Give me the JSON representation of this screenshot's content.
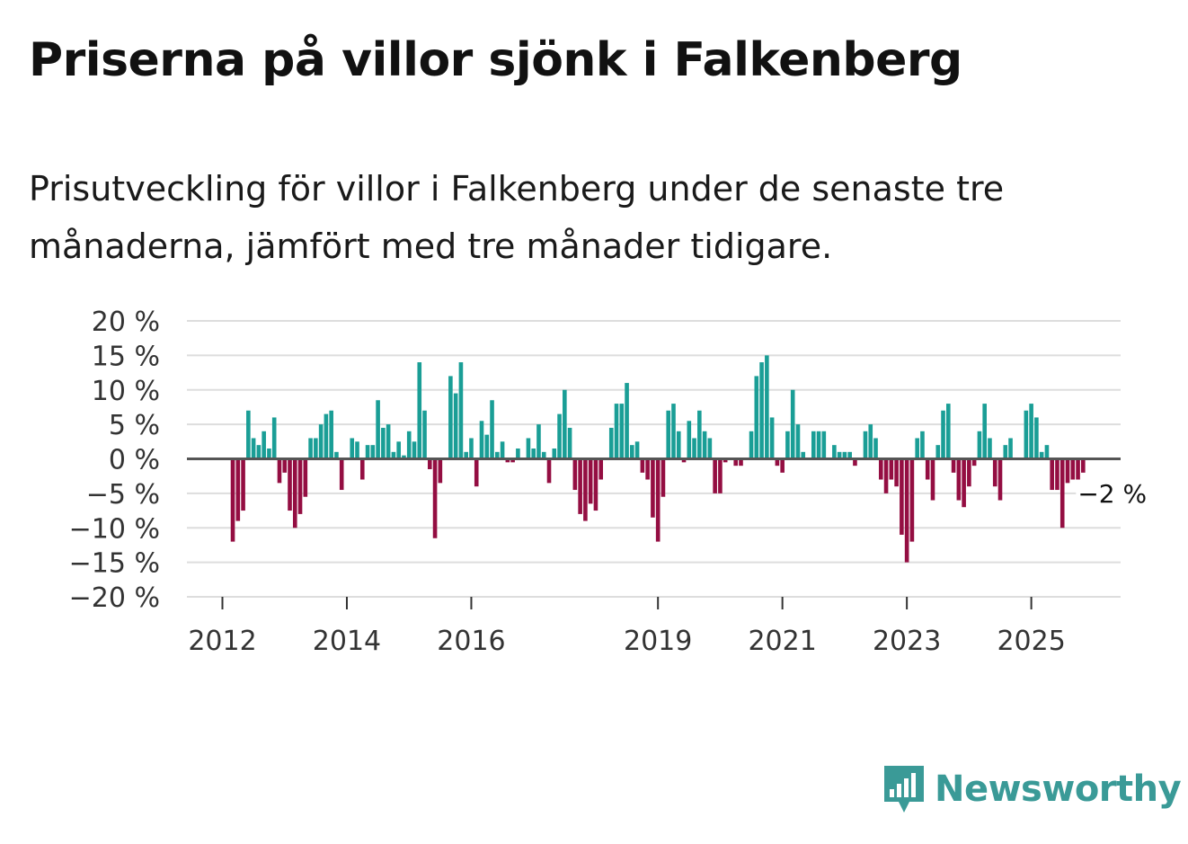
{
  "title": "Priserna på villor sjönk i Falkenberg",
  "subtitle": "Prisutveckling för villor i Falkenberg under de senaste tre månaderna, jämfört med tre månader tidigare.",
  "brand": {
    "name": "Newsworthy",
    "icon": "newsworthy-logo-icon",
    "color": "#3a9a97"
  },
  "colors": {
    "positive": "#1a9e96",
    "negative": "#940e42",
    "gridline": "#dddddd",
    "zeroline": "#555555"
  },
  "chart_data": {
    "type": "bar",
    "title": "Priserna på villor sjönk i Falkenberg",
    "xlabel": "",
    "ylabel": "",
    "ylim": [
      -20,
      20
    ],
    "y_ticks": [
      20,
      15,
      10,
      5,
      0,
      -5,
      -10,
      -15,
      -20
    ],
    "y_tick_labels": [
      "20 %",
      "15 %",
      "10 %",
      "5 %",
      "0 %",
      "−5 %",
      "−10 %",
      "−15 %",
      "−20 %"
    ],
    "x_ticks": [
      {
        "label": "2012",
        "index": 0
      },
      {
        "label": "2014",
        "index": 24
      },
      {
        "label": "2016",
        "index": 48
      },
      {
        "label": "2019",
        "index": 84
      },
      {
        "label": "2021",
        "index": 108
      },
      {
        "label": "2023",
        "index": 132
      },
      {
        "label": "2025",
        "index": 156
      }
    ],
    "start": "2012-01",
    "grid": true,
    "annotation": {
      "label": "−2 %",
      "index": 166,
      "value": -2
    },
    "values": [
      null,
      null,
      -12,
      -9,
      -7.5,
      7,
      3,
      2,
      4,
      1.5,
      6,
      -3.5,
      -2,
      -7.5,
      -10,
      -8,
      -5.5,
      3,
      3,
      5,
      6.5,
      7,
      1,
      -4.5,
      null,
      3,
      2.5,
      -3,
      2,
      2,
      8.5,
      4.5,
      5,
      1,
      2.5,
      0.5,
      4,
      2.5,
      14,
      7,
      -1.5,
      -11.5,
      -3.5,
      null,
      12,
      9.5,
      14,
      1,
      3,
      -4,
      5.5,
      3.5,
      8.5,
      1,
      2.5,
      -0.5,
      -0.5,
      1.5,
      null,
      3,
      1.5,
      5,
      1,
      -3.5,
      1.5,
      6.5,
      10,
      4.5,
      -4.5,
      -8,
      -9,
      -6.5,
      -7.5,
      -3,
      null,
      4.5,
      8,
      8,
      11,
      2,
      2.5,
      -2,
      -3,
      -8.5,
      -12,
      -5.5,
      7,
      8,
      4,
      -0.5,
      5.5,
      3,
      7,
      4,
      3,
      -5,
      -5,
      -0.5,
      null,
      -1,
      -1,
      null,
      4,
      12,
      14,
      15,
      6,
      -1,
      -2,
      4,
      10,
      5,
      1,
      null,
      4,
      4,
      4,
      null,
      2,
      1,
      1,
      1,
      -1,
      null,
      4,
      5,
      3,
      -3,
      -5,
      -3,
      -4,
      -11,
      -15,
      -12,
      3,
      4,
      -3,
      -6,
      2,
      7,
      8,
      -2,
      -6,
      -7,
      -4,
      -1,
      4,
      8,
      3,
      -4,
      -6,
      2,
      3,
      null,
      null,
      7,
      8,
      6,
      1,
      2,
      -4.5,
      -4.5,
      -10,
      -3.5,
      -3,
      -3,
      -2
    ]
  }
}
